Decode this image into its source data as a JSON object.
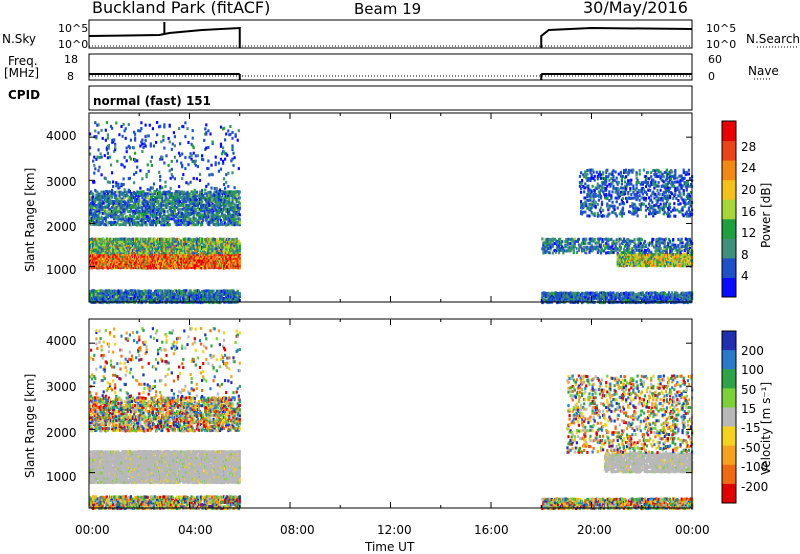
{
  "header": {
    "station": "Buckland Park (fitACF)",
    "beam": "Beam 19",
    "date": "30/May/2016"
  },
  "strips": {
    "nsky_label": "N.Sky",
    "nsky_top": "10^5",
    "nsky_bottom": "10^0",
    "nsearch_label": "N.Search",
    "nsearch_top": "10^5",
    "nsearch_bottom": "10^0",
    "freq_label": "Freq.",
    "freq_unit": "[MHz]",
    "freq_top": "18",
    "freq_bottom": "8",
    "nave_label": "Nave",
    "nave_top": "60",
    "nave_bottom": "0",
    "cpid_label": "CPID",
    "cpid_value": "normal (fast) 151"
  },
  "chart_data": [
    {
      "type": "heatmap",
      "name": "power",
      "ylabel": "Slant Range [km]",
      "yticks": [
        "1000",
        "2000",
        "3000",
        "4000"
      ],
      "ylim": [
        180,
        4560
      ],
      "colorbar_label": "Power [dB]",
      "colorbar_ticks": [
        "4",
        "8",
        "12",
        "16",
        "20",
        "24",
        "28"
      ],
      "colors": [
        "#0a0aff",
        "#1e50c8",
        "#3f8f7a",
        "#1f9f3f",
        "#a6d63a",
        "#f2c21a",
        "#f08a14",
        "#e8451a",
        "#e60000"
      ],
      "data_gaps_ut_hours": [
        [
          6.0,
          18.0
        ]
      ],
      "bands": [
        {
          "t": [
            0.0,
            6.0
          ],
          "range_km": [
            1000,
            1350
          ],
          "level": "strong"
        },
        {
          "t": [
            0.0,
            6.0
          ],
          "range_km": [
            1350,
            1700
          ],
          "level": "medium"
        },
        {
          "t": [
            0.0,
            6.0
          ],
          "range_km": [
            2000,
            2800
          ],
          "level": "weak"
        },
        {
          "t": [
            18.0,
            24.0
          ],
          "range_km": [
            1100,
            1500
          ],
          "level": "medium"
        },
        {
          "t": [
            19.5,
            24.0
          ],
          "range_km": [
            2200,
            3200
          ],
          "level": "weak"
        }
      ]
    },
    {
      "type": "heatmap",
      "name": "velocity",
      "ylabel": "Slant Range [km]",
      "yticks": [
        "1000",
        "2000",
        "3000",
        "4000"
      ],
      "ylim": [
        180,
        4560
      ],
      "colorbar_label": "Velocity [m s⁻¹]",
      "colorbar_ticks": [
        "200",
        "100",
        "50",
        "15",
        "-15",
        "-50",
        "-100",
        "-200"
      ],
      "colors": [
        "#2030b0",
        "#2a7ac8",
        "#2fa34a",
        "#7dd03a",
        "#b8b8b8",
        "#f5d21e",
        "#f5a21e",
        "#f06a14",
        "#e00000"
      ],
      "ground_scatter_color": "#b8b8b8"
    }
  ],
  "time_axis": {
    "xlabel": "Time UT",
    "ticks": [
      "00:00",
      "04:00",
      "08:00",
      "12:00",
      "16:00",
      "20:00",
      "00:00"
    ],
    "xlim_hours": [
      0,
      24
    ]
  }
}
